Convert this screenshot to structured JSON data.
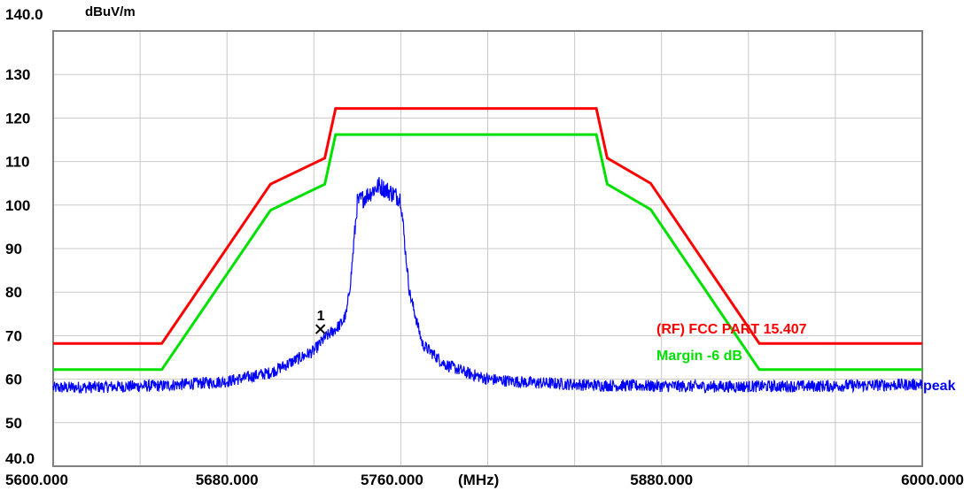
{
  "chart_data": {
    "type": "line",
    "ylabel": "dBuV/m",
    "xlabel": "(MHz)",
    "xlim": [
      5600,
      6000
    ],
    "ylim": [
      40,
      140
    ],
    "grid": true,
    "ytick_labels": [
      "140.0",
      "130",
      "120",
      "110",
      "100",
      "90",
      "80",
      "70",
      "60",
      "50",
      "40.0"
    ],
    "ytick_values": [
      140,
      130,
      120,
      110,
      100,
      90,
      80,
      70,
      60,
      50,
      40
    ],
    "xtick_labels": [
      "5600.000",
      "5680.000",
      "5760.000",
      "5880.000",
      "6000.000"
    ],
    "xtick_values": [
      5600,
      5680,
      5760,
      5880,
      6000
    ],
    "x_gridlines": [
      5640,
      5680,
      5720,
      5760,
      5800,
      5840,
      5880,
      5920,
      5960
    ],
    "limit_line": {
      "name": "(RF) FCC PART 15.407",
      "color": "#ff0000",
      "x": [
        5600,
        5650,
        5700,
        5725,
        5730,
        5850,
        5855,
        5875,
        5925,
        6000
      ],
      "y": [
        68.2,
        68.2,
        104.8,
        110.8,
        122.2,
        122.2,
        110.8,
        105.0,
        68.2,
        68.2
      ]
    },
    "margin_line": {
      "name": "Margin -6 dB",
      "color": "#00e000",
      "x": [
        5600,
        5650,
        5700,
        5725,
        5730,
        5850,
        5855,
        5875,
        5925,
        6000
      ],
      "y": [
        62.2,
        62.2,
        98.8,
        104.8,
        116.2,
        116.2,
        104.8,
        99.0,
        62.2,
        62.2
      ]
    },
    "trace": {
      "name": "peak",
      "color": "#0000ff",
      "envelope_x": [
        5600,
        5650,
        5680,
        5700,
        5710,
        5720,
        5725,
        5730,
        5733,
        5735,
        5737,
        5740,
        5745,
        5750,
        5755,
        5760,
        5762,
        5764,
        5766,
        5768,
        5770,
        5780,
        5790,
        5800,
        5820,
        5850,
        5900,
        5950,
        6000
      ],
      "envelope_y": [
        58.0,
        58.5,
        59.5,
        61.5,
        64.0,
        66.5,
        69.5,
        71.5,
        73.0,
        75.0,
        83.0,
        100.5,
        102.5,
        104.5,
        103.0,
        101.5,
        90.0,
        80.0,
        76.0,
        72.0,
        68.0,
        63.5,
        61.5,
        60.0,
        59.2,
        58.6,
        58.3,
        58.4,
        58.8
      ]
    },
    "marker": {
      "label": "1",
      "x": 5723,
      "y": 71.5
    }
  }
}
